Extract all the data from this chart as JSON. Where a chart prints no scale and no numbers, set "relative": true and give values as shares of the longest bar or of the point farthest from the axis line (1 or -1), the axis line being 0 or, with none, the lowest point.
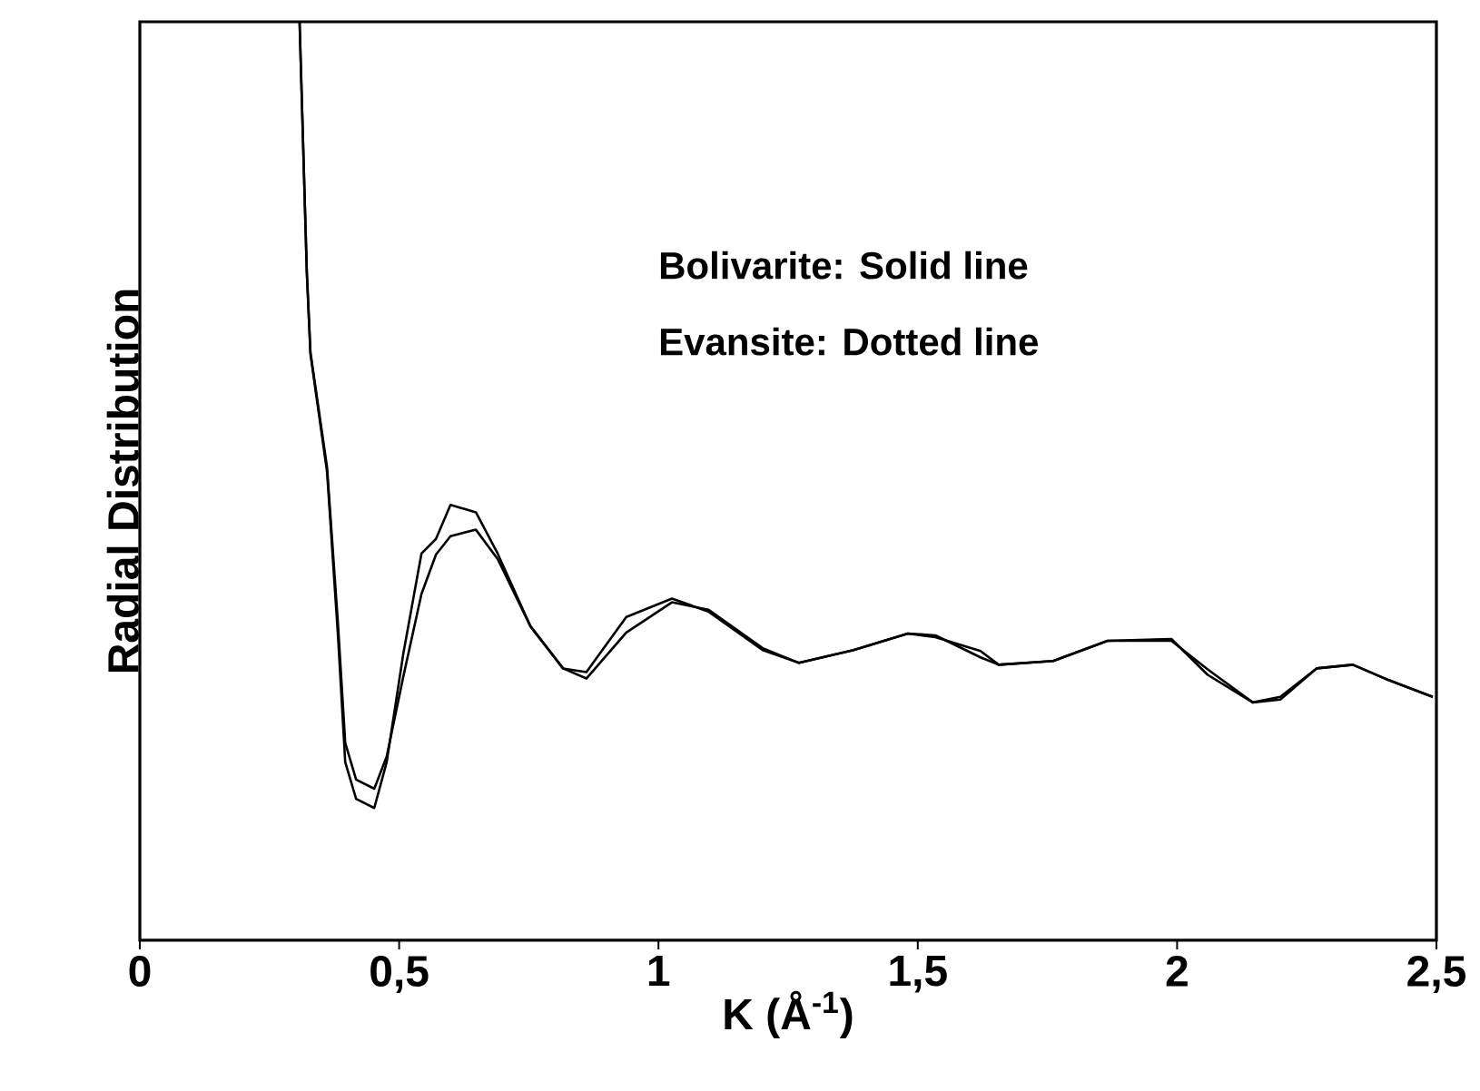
{
  "chart_data": {
    "type": "line",
    "relative": true,
    "xlabel": "K (Å$^{-1}$)",
    "ylabel": "Radial Distribution",
    "annotations": [
      "Bolivarite:   Solid line",
      "Evansite:  Dotted line"
    ],
    "xlim": [
      0,
      2.5
    ],
    "xticks": [
      0,
      {
        "value": 0.5,
        "label": "0,5"
      },
      1,
      {
        "value": 1.5,
        "label": "1,5"
      },
      2,
      {
        "value": 2.5,
        "label": "2,5"
      }
    ],
    "grid": false,
    "series": [
      {
        "color": "#000000",
        "x": [
          0.308,
          0.322,
          0.329,
          0.361,
          0.382,
          0.396,
          0.417,
          0.452,
          0.476,
          0.508,
          0.543,
          0.571,
          0.599,
          0.648,
          0.69,
          0.753,
          0.816,
          0.861,
          0.938,
          1.026,
          1.096,
          1.201,
          1.271,
          1.376,
          1.481,
          1.534,
          1.621,
          1.656,
          1.761,
          1.866,
          1.989,
          2.059,
          2.146,
          2.199,
          2.269,
          2.339,
          2.409,
          2.493
        ],
        "values": [
          1.0,
          0.727,
          0.638,
          0.51,
          0.332,
          0.194,
          0.154,
          0.144,
          0.194,
          0.312,
          0.421,
          0.437,
          0.474,
          0.466,
          0.421,
          0.342,
          0.296,
          0.292,
          0.352,
          0.372,
          0.358,
          0.316,
          0.302,
          0.316,
          0.334,
          0.332,
          0.308,
          0.3,
          0.304,
          0.326,
          0.328,
          0.289,
          0.259,
          0.265,
          0.296,
          0.3,
          0.283,
          0.265
        ]
      },
      {
        "color": "#000000",
        "x": [
          0.308,
          0.322,
          0.329,
          0.361,
          0.382,
          0.396,
          0.417,
          0.452,
          0.476,
          0.508,
          0.543,
          0.571,
          0.599,
          0.648,
          0.69,
          0.753,
          0.816,
          0.861,
          0.938,
          1.026,
          1.096,
          1.201,
          1.271,
          1.376,
          1.481,
          1.534,
          1.621,
          1.656,
          1.761,
          1.866,
          1.989,
          2.059,
          2.146,
          2.199,
          2.269,
          2.339,
          2.409,
          2.493
        ],
        "values": [
          1.0,
          0.727,
          0.64,
          0.515,
          0.345,
          0.215,
          0.175,
          0.165,
          0.2,
          0.287,
          0.377,
          0.42,
          0.44,
          0.447,
          0.415,
          0.342,
          0.296,
          0.285,
          0.335,
          0.368,
          0.36,
          0.318,
          0.302,
          0.316,
          0.334,
          0.33,
          0.315,
          0.3,
          0.304,
          0.326,
          0.326,
          0.295,
          0.259,
          0.262,
          0.296,
          0.3,
          0.283,
          0.265
        ]
      }
    ]
  }
}
